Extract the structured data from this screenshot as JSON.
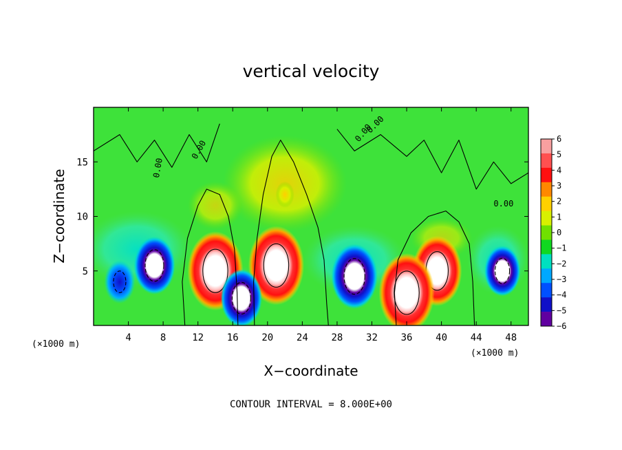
{
  "chart_data": {
    "type": "heatmap",
    "title": "vertical velocity",
    "xlabel": "X−coordinate",
    "ylabel": "Z−coordinate",
    "x_unit_label": "(×1000 m)",
    "x_unit_label_right": "(×1000 m)",
    "footer": "CONTOUR INTERVAL = 8.000E+00",
    "xlim": [
      0,
      50
    ],
    "ylim": [
      0,
      20
    ],
    "x_ticks": [
      4,
      8,
      12,
      16,
      20,
      24,
      28,
      32,
      36,
      40,
      44,
      48
    ],
    "y_ticks": [
      5,
      10,
      15
    ],
    "contour_label": "0.00",
    "colorbar": {
      "levels": [
        6,
        5,
        4,
        3,
        2,
        1,
        0,
        -1,
        -2,
        -3,
        -4,
        -5,
        -6
      ],
      "level_labels": [
        "6",
        "5",
        "4",
        "3",
        "2",
        "1",
        "0",
        "−1",
        "−2",
        "−3",
        "−4",
        "−5",
        "−6"
      ],
      "colors": [
        "#f8a0a0",
        "#ff5050",
        "#ff1010",
        "#ff8800",
        "#ffd000",
        "#d8f000",
        "#70e000",
        "#10d820",
        "#00e0c0",
        "#00a8ff",
        "#0050ff",
        "#1010c8",
        "#6000a0"
      ]
    },
    "cells": [
      {
        "x": 14,
        "z": 5,
        "w": 9,
        "min_over": true
      },
      {
        "x": 21,
        "z": 5.5,
        "w": 9,
        "min_over": true
      },
      {
        "x": 39.5,
        "z": 5,
        "w": 8
      },
      {
        "x": 36,
        "z": 3,
        "w": 9
      },
      {
        "x": 17,
        "z": 2.5,
        "w": -8
      },
      {
        "x": 30,
        "z": 4.5,
        "w": -9
      },
      {
        "x": 7,
        "z": 5.5,
        "w": -8
      },
      {
        "x": 3,
        "z": 4,
        "w": -6
      },
      {
        "x": 47,
        "z": 5,
        "w": -7
      },
      {
        "x": 22,
        "z": 12,
        "w": 3
      }
    ]
  }
}
